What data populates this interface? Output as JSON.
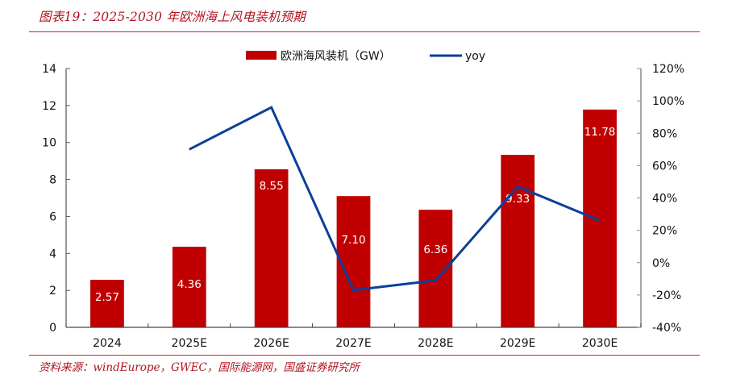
{
  "title": "图表19：2025-2030 年欧洲海上风电装机预期",
  "source": "资料来源：windEurope，GWEC，国际能源网，国盛证券研究所",
  "colors": {
    "bar": "#c00000",
    "line": "#0b3f9a",
    "accent": "#b3121e",
    "axis": "#7f7f7f"
  },
  "chart_data": {
    "type": "bar+line",
    "categories": [
      "2024",
      "2025E",
      "2026E",
      "2027E",
      "2028E",
      "2029E",
      "2030E"
    ],
    "series": [
      {
        "name": "欧洲海风装机（GW）",
        "type": "bar",
        "axis": "left",
        "values": [
          2.57,
          4.36,
          8.55,
          7.1,
          6.36,
          9.33,
          11.78
        ],
        "labels": [
          "2.57",
          "4.36",
          "8.55",
          "7.10",
          "6.36",
          "9.33",
          "11.78"
        ]
      },
      {
        "name": "yoy",
        "type": "line",
        "axis": "right",
        "values": [
          null,
          70,
          96,
          -17,
          -11,
          47,
          26
        ]
      }
    ],
    "left_axis": {
      "ylim": [
        0,
        14
      ],
      "ticks": [
        "0",
        "2",
        "4",
        "6",
        "8",
        "10",
        "12",
        "14"
      ]
    },
    "right_axis": {
      "ylim": [
        -40,
        120
      ],
      "unit": "%",
      "ticks": [
        "-40%",
        "-20%",
        "0%",
        "20%",
        "40%",
        "60%",
        "80%",
        "100%",
        "120%"
      ]
    },
    "legend": {
      "placement": "top-center",
      "entries": [
        "欧洲海风装机（GW）",
        "yoy"
      ]
    },
    "grid": false
  }
}
